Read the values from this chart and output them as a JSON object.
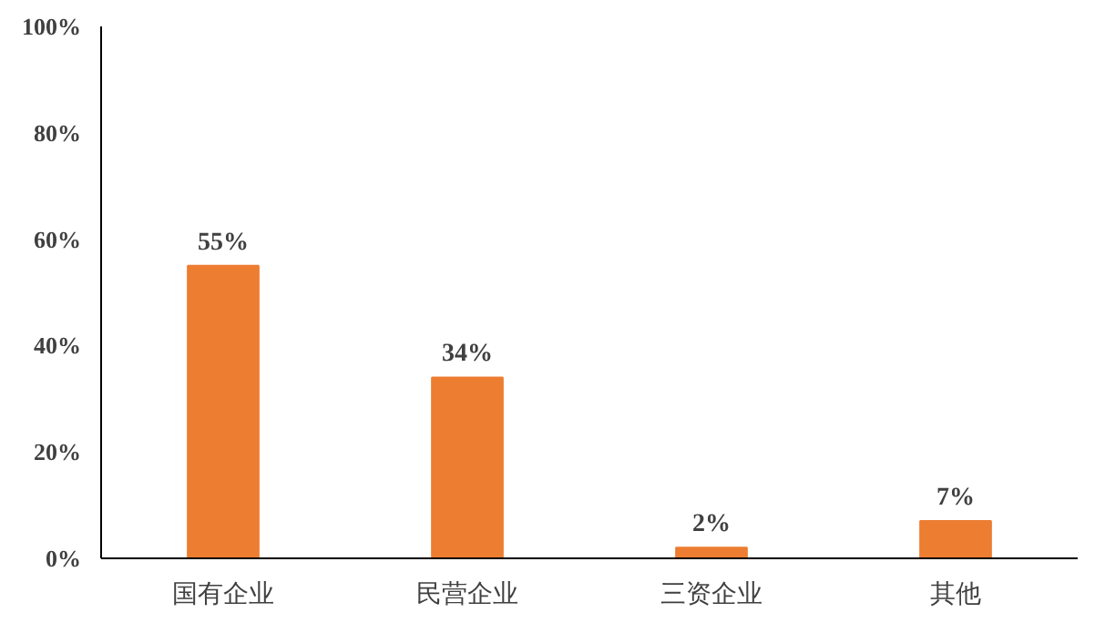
{
  "chart_data": {
    "type": "bar",
    "categories": [
      "国有企业",
      "民营企业",
      "三资企业",
      "其他"
    ],
    "values": [
      55,
      34,
      2,
      7
    ],
    "color": "#ed7d31",
    "value_labels": [
      "55%",
      "34%",
      "2%",
      "7%"
    ],
    "ylim": [
      0,
      100
    ],
    "yticks": [
      {
        "value": 0,
        "label": "0%"
      },
      {
        "value": 20,
        "label": "20%"
      },
      {
        "value": 40,
        "label": "40%"
      },
      {
        "value": 60,
        "label": "60%"
      },
      {
        "value": 80,
        "label": "80%"
      },
      {
        "value": 100,
        "label": "100%"
      }
    ],
    "grid": false
  }
}
